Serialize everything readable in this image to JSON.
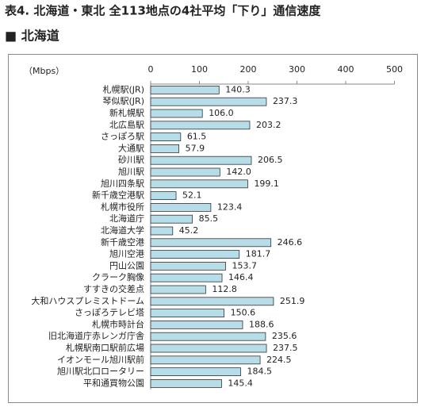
{
  "chart_data": {
    "type": "bar",
    "orientation": "horizontal",
    "title": "表4. 北海道・東北 全113地点の4社平均「下り」通信速度",
    "subtitle": "■ 北海道",
    "unit_label": "（Mbps）",
    "categories": [
      "札幌駅(JR)",
      "琴似駅(JR)",
      "新札幌駅",
      "北広島駅",
      "さっぽろ駅",
      "大通駅",
      "砂川駅",
      "旭川駅",
      "旭川四条駅",
      "新千歳空港駅",
      "札幌市役所",
      "北海道庁",
      "北海道大学",
      "新千歳空港",
      "旭川空港",
      "円山公園",
      "クラーク胸像",
      "すすきの交差点",
      "大和ハウスプレミストドーム",
      "さっぽろテレビ塔",
      "札幌市時計台",
      "旧北海道庁赤レンガ庁舎",
      "札幌駅南口駅前広場",
      "イオンモール旭川駅前",
      "旭川駅北口ロータリー",
      "平和通買物公園"
    ],
    "values": [
      140.3,
      237.3,
      106.0,
      203.2,
      61.5,
      57.9,
      206.5,
      142.0,
      199.1,
      52.1,
      123.4,
      85.5,
      45.2,
      246.6,
      181.7,
      153.7,
      146.4,
      112.8,
      251.9,
      150.6,
      188.6,
      235.6,
      237.5,
      224.5,
      184.5,
      145.4
    ],
    "value_labels": [
      "140.3",
      "237.3",
      "106.0",
      "203.2",
      "61.5",
      "57.9",
      "206.5",
      "142.0",
      "199.1",
      "52.1",
      "123.4",
      "85.5",
      "45.2",
      "246.6",
      "181.7",
      "153.7",
      "146.4",
      "112.8",
      "251.9",
      "150.6",
      "188.6",
      "235.6",
      "237.5",
      "224.5",
      "184.5",
      "145.4"
    ],
    "color": "#b7dde8",
    "xlim": [
      0,
      500
    ],
    "xticks": [
      0,
      100,
      200,
      300,
      400,
      500
    ]
  }
}
